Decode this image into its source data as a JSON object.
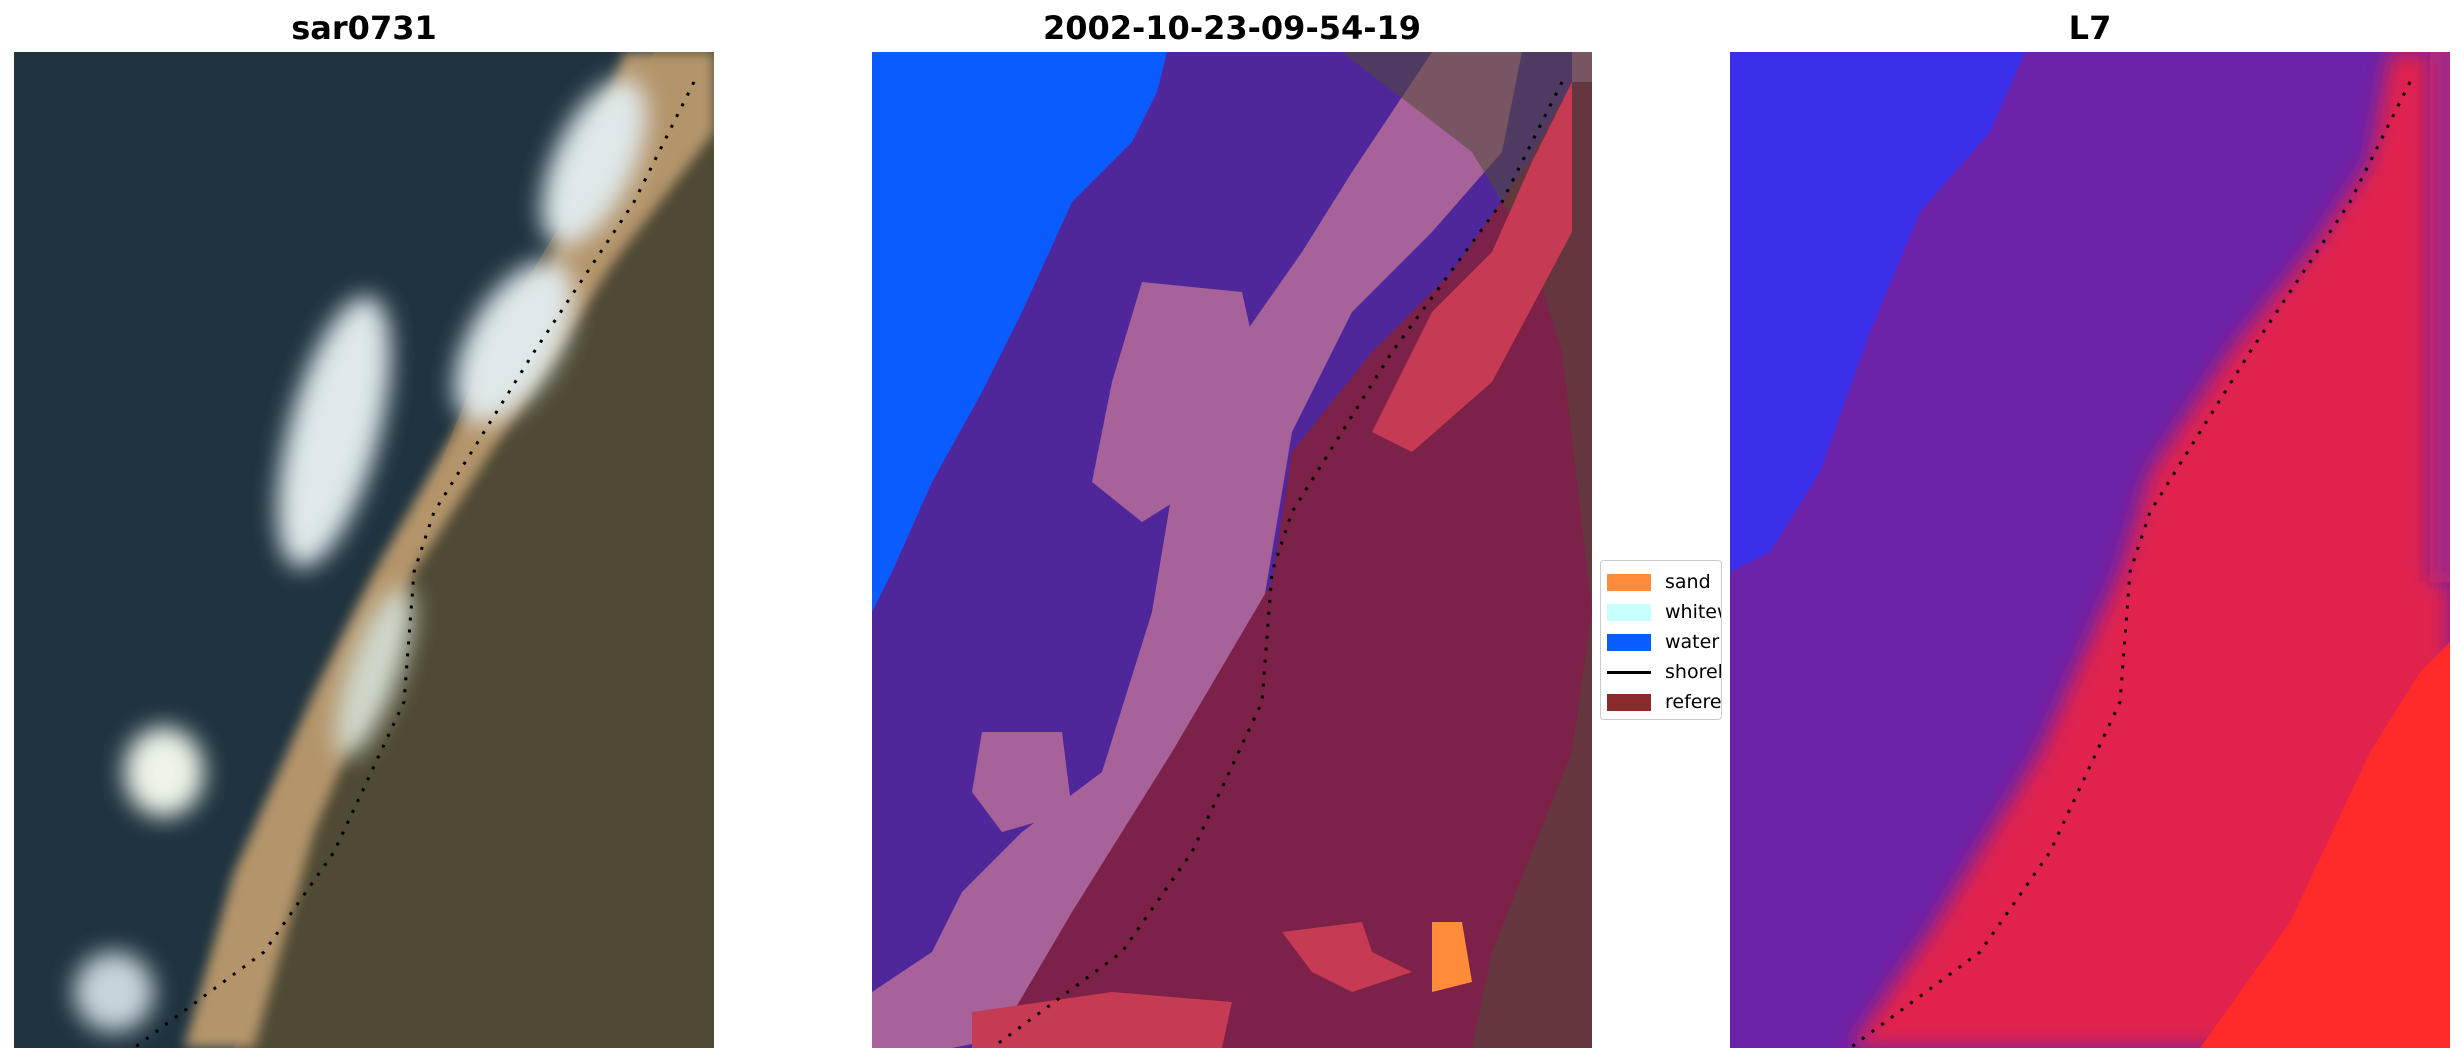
{
  "panels": {
    "rgb": {
      "title": "sar0731"
    },
    "classified": {
      "title": "2002-10-23-09-54-19"
    },
    "mndwi": {
      "title": "L7"
    }
  },
  "legend": {
    "items": [
      {
        "label": "sand",
        "color": "#ff8c3a",
        "kind": "patch"
      },
      {
        "label": "whitew",
        "color": "#c8ffff",
        "kind": "patch"
      },
      {
        "label": "water",
        "color": "#0a5cff",
        "kind": "patch"
      },
      {
        "label": "shorel",
        "color": "#000000",
        "kind": "line"
      },
      {
        "label": "referen",
        "color": "#8b2a2a",
        "kind": "patch"
      }
    ]
  },
  "colors": {
    "deep_water": "#1f3340",
    "land": "#4f4a35",
    "beach": "#b4946a",
    "whitewater": "#dfe8ea",
    "classified_water": "#0a5cff",
    "classified_purple": "#50279a",
    "classified_pink": "#a8629a",
    "classified_land": "#7c2148",
    "classified_red": "#c63a54",
    "index_blue": "#3a2ee8",
    "index_purple": "#6c22a8",
    "index_red": "#e0244e",
    "index_bright_red": "#ff2a2a"
  }
}
